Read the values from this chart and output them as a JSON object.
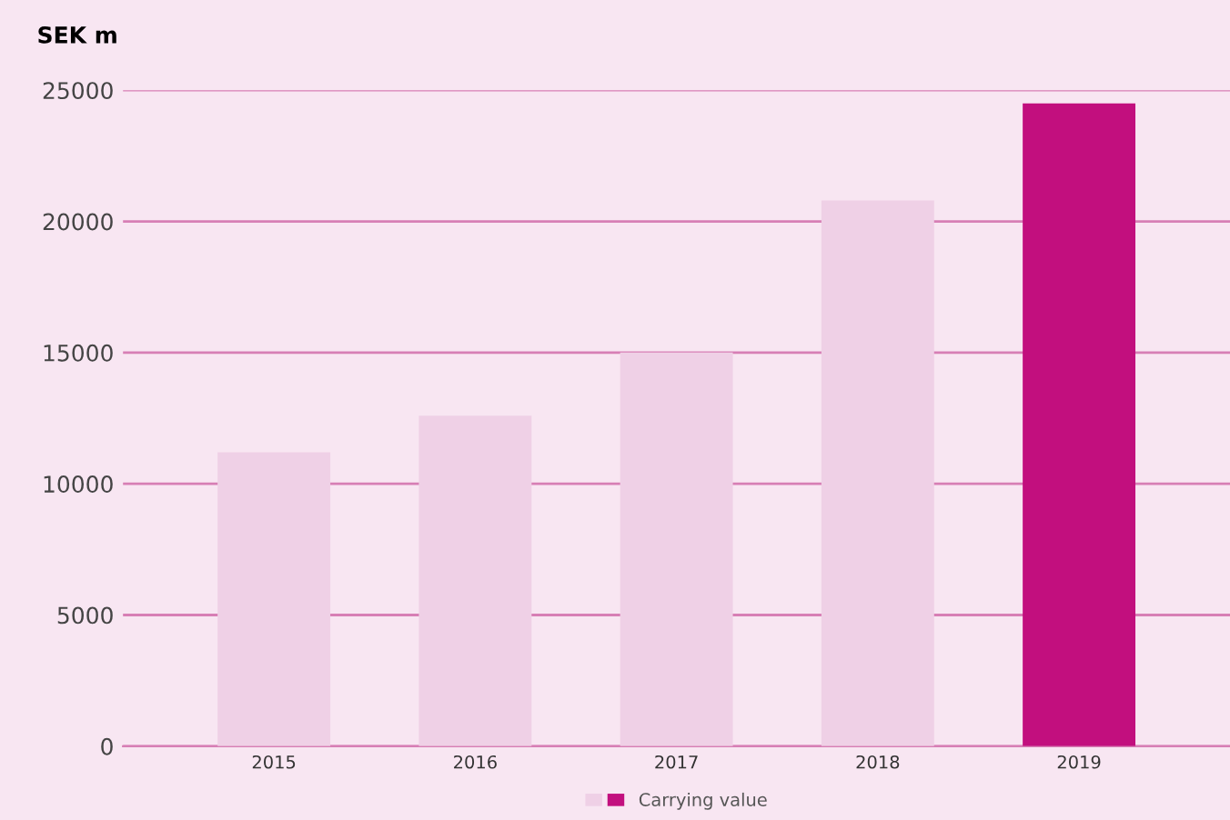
{
  "chart_data": {
    "type": "bar",
    "ylabel": "SEK m",
    "categories": [
      "2015",
      "2016",
      "2017",
      "2018",
      "2019"
    ],
    "series": [
      {
        "name": "Carrying value",
        "values": [
          11200,
          12600,
          15000,
          20800,
          24500
        ],
        "colors": [
          "#efd0e6",
          "#efd0e6",
          "#efd0e6",
          "#efd0e6",
          "#c20f7e"
        ]
      }
    ],
    "ylim": [
      0,
      25000
    ],
    "yticks": [
      0,
      5000,
      10000,
      15000,
      20000,
      25000
    ],
    "grid": "y",
    "legend": "bottom"
  }
}
